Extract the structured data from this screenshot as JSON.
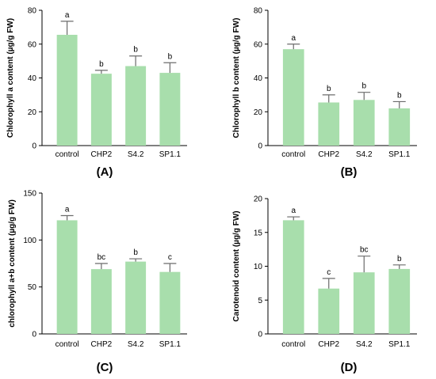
{
  "figure": {
    "background": "#ffffff",
    "bar_color": "#a8deac"
  },
  "chart_data": [
    {
      "type": "bar",
      "panel_label": "(A)",
      "ylabel": "Chlorophyll a content (µg/g FW)",
      "categories": [
        "control",
        "CHP2",
        "S4.2",
        "SP1.1"
      ],
      "values": [
        65.5,
        42.5,
        47,
        43
      ],
      "errors": [
        8,
        2,
        6,
        6
      ],
      "letters": [
        "a",
        "b",
        "b",
        "b"
      ],
      "ylim": [
        0,
        80
      ],
      "yticks": [
        "0",
        "20",
        "40",
        "60",
        "80"
      ]
    },
    {
      "type": "bar",
      "panel_label": "(B)",
      "ylabel": "Chlorophyll b content (µg/g FW)",
      "categories": [
        "control",
        "CHP2",
        "S4.2",
        "SP1.1"
      ],
      "values": [
        57,
        25.5,
        27,
        22
      ],
      "errors": [
        3,
        4.5,
        4.5,
        4
      ],
      "letters": [
        "a",
        "b",
        "b",
        "b"
      ],
      "ylim": [
        0,
        80
      ],
      "yticks": [
        "0",
        "20",
        "40",
        "60",
        "80"
      ]
    },
    {
      "type": "bar",
      "panel_label": "(C)",
      "ylabel": "chlorophyll a+b content (µg/g FW)",
      "categories": [
        "control",
        "CHP2",
        "S4.2",
        "SP1.1"
      ],
      "values": [
        121,
        69,
        77,
        66
      ],
      "errors": [
        5,
        6,
        3,
        9
      ],
      "letters": [
        "a",
        "bc",
        "b",
        "c"
      ],
      "ylim": [
        0,
        150
      ],
      "yticks": [
        "0",
        "50",
        "100",
        "150"
      ]
    },
    {
      "type": "bar",
      "panel_label": "(D)",
      "ylabel": "Carotenoid content (µg/g FW)",
      "categories": [
        "control",
        "CHP2",
        "S4.2",
        "SP1.1"
      ],
      "values": [
        16.8,
        6.7,
        9.1,
        9.6
      ],
      "errors": [
        0.5,
        1.5,
        2.4,
        0.6
      ],
      "letters": [
        "a",
        "c",
        "bc",
        "b"
      ],
      "ylim": [
        0,
        20
      ],
      "yticks": [
        "0",
        "5",
        "10",
        "15",
        "20"
      ]
    }
  ]
}
